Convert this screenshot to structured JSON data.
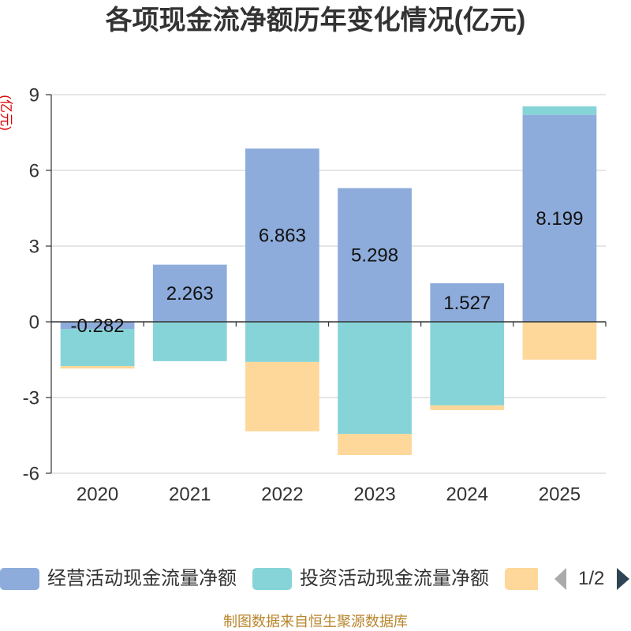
{
  "chart_data": {
    "type": "bar",
    "stacked": true,
    "title": "各项现金流净额历年变化情况(亿元)",
    "ylabel": "(亿元)",
    "xlabel": "",
    "categories": [
      "2020",
      "2021",
      "2022",
      "2023",
      "2024",
      "2025"
    ],
    "ylim": [
      -6,
      9
    ],
    "yticks": [
      9,
      6,
      3,
      0,
      -3,
      -6
    ],
    "grid": true,
    "legend_position": "bottom",
    "series": [
      {
        "name": "经营活动现金流量净额",
        "color": "#8DACDB",
        "show_labels": true,
        "values": [
          -0.282,
          2.263,
          6.863,
          5.298,
          1.527,
          8.199
        ]
      },
      {
        "name": "投资活动现金流量净额",
        "color": "#86D4D8",
        "show_labels": false,
        "values": [
          -1.47,
          -1.56,
          -1.59,
          -4.44,
          -3.31,
          0.34
        ]
      },
      {
        "color": "#FDD89A",
        "show_labels": false,
        "values": [
          -0.1,
          0,
          -2.75,
          -0.84,
          -0.19,
          -1.5
        ]
      }
    ]
  },
  "legend": {
    "page_indicator": "1/2",
    "prev_icon": "triangle-left-icon",
    "next_icon": "triangle-right-icon"
  },
  "colors": {
    "axis": "#333333",
    "grid": "#cccccc",
    "ylabel": "#e00000",
    "footer": "#b8862d",
    "pager_active": "#2f4554",
    "pager_disabled": "#aaaaaa"
  },
  "footer": "制图数据来自恒生聚源数据库"
}
